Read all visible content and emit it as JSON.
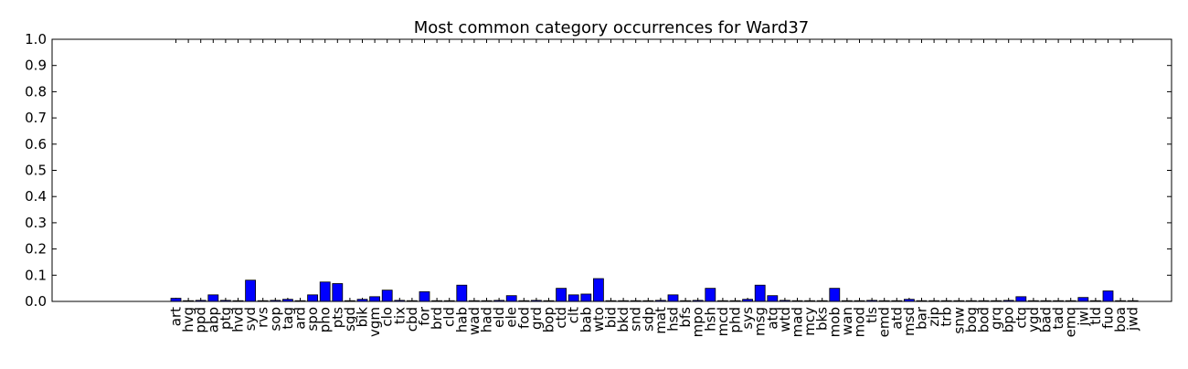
{
  "chart_data": {
    "type": "bar",
    "title": "Most common category occurrences for Ward37",
    "xlabel": "",
    "ylabel": "",
    "ylim": [
      0,
      1.0
    ],
    "yticks": [
      "0.0",
      "0.1",
      "0.2",
      "0.3",
      "0.4",
      "0.5",
      "0.6",
      "0.7",
      "0.8",
      "0.9",
      "1.0"
    ],
    "grid": false,
    "bar_color": "#0000ff",
    "categories": [
      "art",
      "hvg",
      "ppd",
      "abp",
      "ptg",
      "hvd",
      "syd",
      "rvs",
      "sop",
      "tag",
      "ard",
      "spo",
      "pho",
      "pts",
      "sgd",
      "bik",
      "vgm",
      "clo",
      "tix",
      "cbd",
      "for",
      "brd",
      "cld",
      "hab",
      "wad",
      "had",
      "eld",
      "ele",
      "fod",
      "grd",
      "bop",
      "ctd",
      "clt",
      "bab",
      "wto",
      "bid",
      "bkd",
      "snd",
      "sdp",
      "mat",
      "hsd",
      "bfs",
      "mpo",
      "hsh",
      "mcd",
      "phd",
      "sys",
      "msg",
      "atq",
      "wtd",
      "mad",
      "mcy",
      "bks",
      "mob",
      "wan",
      "mod",
      "tls",
      "emd",
      "atd",
      "msd",
      "bar",
      "zip",
      "trb",
      "snw",
      "bog",
      "bod",
      "grq",
      "bpo",
      "ctq",
      "ygd",
      "bad",
      "tad",
      "emq",
      "jwl",
      "tld",
      "fuo",
      "boa",
      "jwd"
    ],
    "values": [
      0.012,
      0.001,
      0.004,
      0.025,
      0.004,
      0.001,
      0.081,
      0.001,
      0.004,
      0.008,
      0.001,
      0.025,
      0.074,
      0.068,
      0.001,
      0.008,
      0.018,
      0.043,
      0.004,
      0.001,
      0.037,
      0.001,
      0.001,
      0.062,
      0.001,
      0.001,
      0.004,
      0.022,
      0.001,
      0.004,
      0.001,
      0.05,
      0.025,
      0.028,
      0.087,
      0.001,
      0.001,
      0.001,
      0.001,
      0.004,
      0.025,
      0.001,
      0.004,
      0.05,
      0.001,
      0.001,
      0.008,
      0.062,
      0.022,
      0.004,
      0.001,
      0.001,
      0.001,
      0.05,
      0.001,
      0.001,
      0.004,
      0.001,
      0.001,
      0.008,
      0.001,
      0.001,
      0.001,
      0.001,
      0.001,
      0.001,
      0.001,
      0.004,
      0.018,
      0.001,
      0.001,
      0.001,
      0.001,
      0.015,
      0.001,
      0.04,
      0.001,
      0.001
    ]
  }
}
